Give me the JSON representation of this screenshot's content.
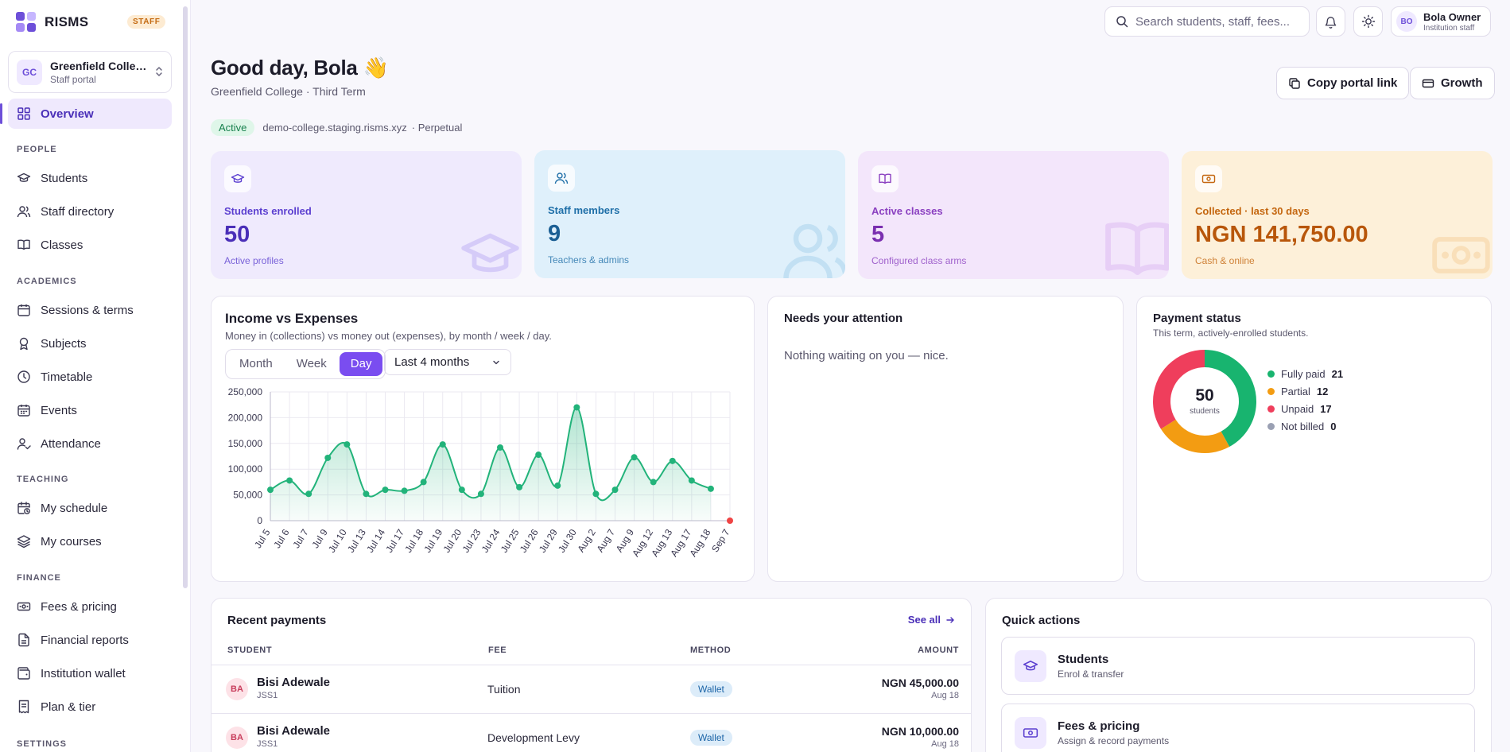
{
  "brand": {
    "name": "RISMS",
    "badge": "STAFF"
  },
  "institution": {
    "initials": "GC",
    "name": "Greenfield College",
    "portal": "Staff portal"
  },
  "nav": {
    "overview": "Overview",
    "sections": {
      "people": "PEOPLE",
      "academics": "ACADEMICS",
      "teaching": "TEACHING",
      "finance": "FINANCE",
      "settings": "SETTINGS"
    },
    "people": [
      "Students",
      "Staff directory",
      "Classes"
    ],
    "academics": [
      "Sessions & terms",
      "Subjects",
      "Timetable",
      "Events",
      "Attendance"
    ],
    "teaching": [
      "My schedule",
      "My courses"
    ],
    "finance": [
      "Fees & pricing",
      "Financial reports",
      "Institution wallet",
      "Plan & tier"
    ]
  },
  "topbar": {
    "search_placeholder": "Search students, staff, fees...",
    "user_initials": "BO",
    "user_name": "Bola Owner",
    "user_role": "Institution staff"
  },
  "header": {
    "greeting": "Good day, Bola 👋",
    "subtitle": "Greenfield College · Third Term",
    "status": "Active",
    "domain": "demo-college.staging.risms.xyz",
    "plan": "· Perpetual",
    "copy_link": "Copy portal link",
    "growth": "Growth"
  },
  "stats": [
    {
      "label": "Students enrolled",
      "value": "50",
      "note": "Active profiles",
      "icon": "graduation-cap-icon"
    },
    {
      "label": "Staff members",
      "value": "9",
      "note": "Teachers & admins",
      "icon": "users-icon"
    },
    {
      "label": "Active classes",
      "value": "5",
      "note": "Configured class arms",
      "icon": "book-icon"
    },
    {
      "label": "Collected · last 30 days",
      "value": "NGN 141,750.00",
      "note": "Cash & online",
      "icon": "banknote-icon"
    }
  ],
  "income_card": {
    "title": "Income vs Expenses",
    "subtitle": "Money in (collections) vs money out (expenses), by month / week / day.",
    "tabs": [
      "Month",
      "Week",
      "Day"
    ],
    "active_tab": "Day",
    "range": "Last 4 months"
  },
  "chart_data": {
    "type": "area",
    "x": [
      "Jul 5",
      "Jul 6",
      "Jul 7",
      "Jul 9",
      "Jul 10",
      "Jul 13",
      "Jul 14",
      "Jul 17",
      "Jul 18",
      "Jul 19",
      "Jul 20",
      "Jul 23",
      "Jul 24",
      "Jul 25",
      "Jul 26",
      "Jul 29",
      "Jul 30",
      "Aug 2",
      "Aug 7",
      "Aug 9",
      "Aug 12",
      "Aug 13",
      "Aug 17",
      "Aug 18",
      "Sep 7"
    ],
    "series": [
      {
        "values": [
          60000,
          78000,
          52000,
          122000,
          148000,
          52000,
          60000,
          58000,
          75000,
          148000,
          60000,
          52000,
          142000,
          65000,
          128000,
          68000,
          220000,
          52000,
          60000,
          123000,
          75000,
          116000,
          78000,
          62000,
          null
        ],
        "color": "#22b37a"
      },
      {
        "values": [
          null,
          null,
          null,
          null,
          null,
          null,
          null,
          null,
          null,
          null,
          null,
          null,
          null,
          null,
          null,
          null,
          null,
          null,
          null,
          null,
          null,
          null,
          null,
          null,
          0
        ],
        "color": "#ef4444"
      }
    ],
    "ylim": [
      0,
      250000
    ],
    "yticks": [
      "250,000",
      "200,000",
      "150,000",
      "100,000",
      "50,000",
      "0"
    ],
    "grid": true
  },
  "attention": {
    "title": "Needs your attention",
    "empty": "Nothing waiting on you — nice."
  },
  "payment_status": {
    "title": "Payment status",
    "subtitle": "This term, actively-enrolled students.",
    "total": "50",
    "total_label": "students",
    "items": [
      {
        "label": "Fully paid",
        "value": 21,
        "color": "#18b46f"
      },
      {
        "label": "Partial",
        "value": 12,
        "color": "#f39c12"
      },
      {
        "label": "Unpaid",
        "value": 17,
        "color": "#ef3e5c"
      },
      {
        "label": "Not billed",
        "value": 0,
        "color": "#9aa0b3"
      }
    ]
  },
  "recent_payments": {
    "title": "Recent payments",
    "see_all": "See all",
    "columns": [
      "STUDENT",
      "FEE",
      "METHOD",
      "AMOUNT"
    ],
    "rows": [
      {
        "initials": "BA",
        "name": "Bisi Adewale",
        "class": "JSS1",
        "fee": "Tuition",
        "method": "Wallet",
        "amount": "NGN 45,000.00",
        "date": "Aug 18"
      },
      {
        "initials": "BA",
        "name": "Bisi Adewale",
        "class": "JSS1",
        "fee": "Development Levy",
        "method": "Wallet",
        "amount": "NGN 10,000.00",
        "date": "Aug 18"
      }
    ]
  },
  "quick_actions": {
    "title": "Quick actions",
    "items": [
      {
        "title": "Students",
        "sub": "Enrol & transfer"
      },
      {
        "title": "Fees & pricing",
        "sub": "Assign & record payments"
      }
    ]
  },
  "colors": {
    "accent": "#7a4df0",
    "success": "#18b46f"
  }
}
